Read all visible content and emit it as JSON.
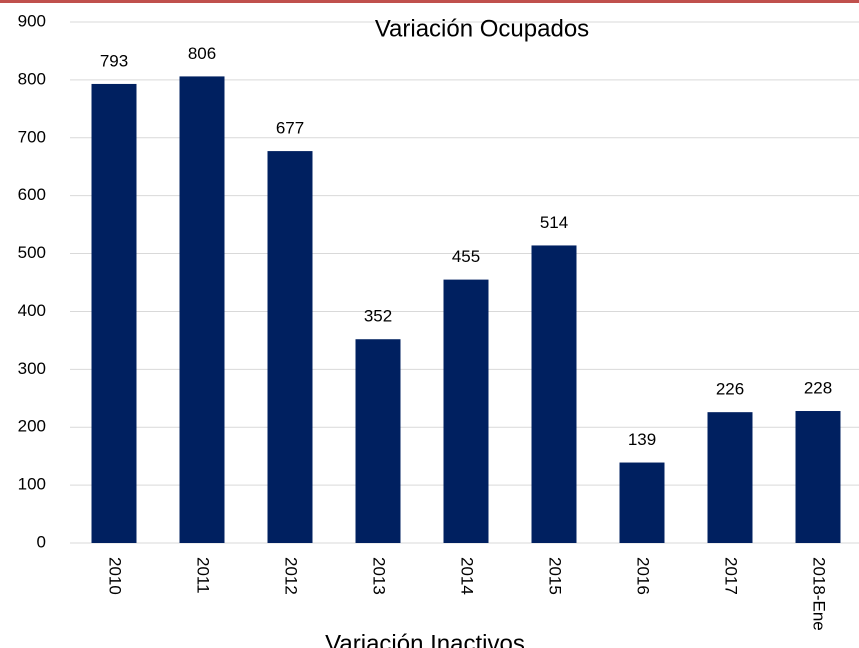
{
  "chart_data": {
    "type": "bar",
    "title": "Variación Ocupados",
    "categories": [
      "2010",
      "2011",
      "2012",
      "2013",
      "2014",
      "2015",
      "2016",
      "2017",
      "2018-Ene"
    ],
    "values": [
      793,
      806,
      677,
      352,
      455,
      514,
      139,
      226,
      228
    ],
    "color": "#002060",
    "ylim": [
      0,
      900
    ],
    "yticks": [
      0,
      100,
      200,
      300,
      400,
      500,
      600,
      700,
      800,
      900
    ],
    "grid": true
  },
  "caption": "Variación Inactivos"
}
